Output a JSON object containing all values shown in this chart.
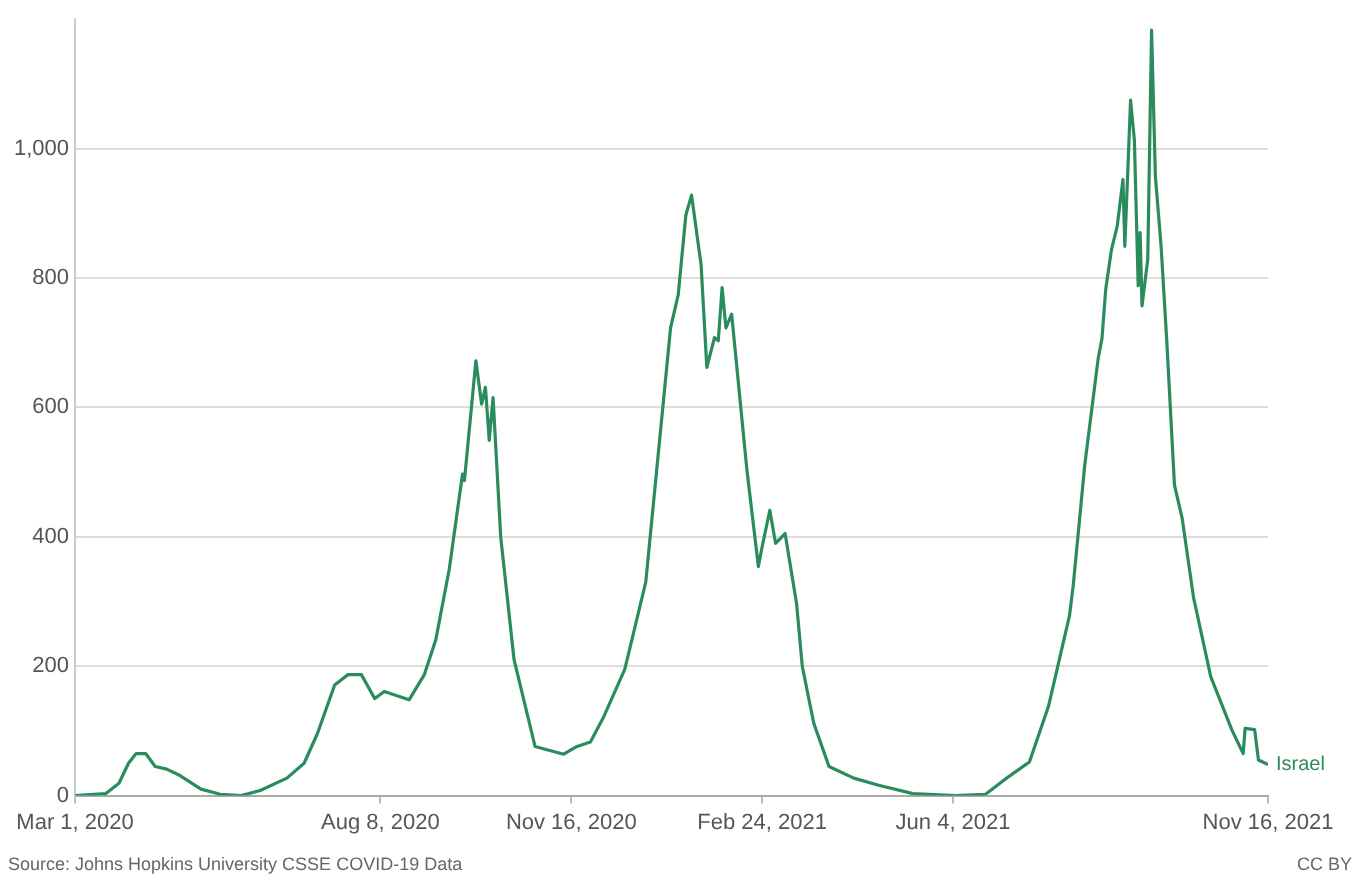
{
  "chart_data": {
    "type": "line",
    "annotations": [
      "Source: Johns Hopkins University CSSE COVID-19 Data",
      "CC BY"
    ],
    "xlim": [
      "2020-03-01",
      "2021-11-16"
    ],
    "xticks": [
      {
        "value": "2020-03-01",
        "label": "Mar 1, 2020"
      },
      {
        "value": "2020-08-08",
        "label": "Aug 8, 2020"
      },
      {
        "value": "2020-11-16",
        "label": "Nov 16, 2020"
      },
      {
        "value": "2021-02-24",
        "label": "Feb 24, 2021"
      },
      {
        "value": "2021-06-04",
        "label": "Jun 4, 2021"
      },
      {
        "value": "2021-11-16",
        "label": "Nov 16, 2021"
      }
    ],
    "ylim": [
      0,
      1200
    ],
    "yticks": [
      0,
      200,
      400,
      600,
      800,
      {
        "value": 1000,
        "label": "1,000"
      }
    ],
    "grid": "y",
    "marker": "none",
    "line_style": "solid",
    "series": [
      {
        "name": "Israel",
        "color": "#2a8c5c",
        "x": [
          "2020-03-01",
          "2020-03-17",
          "2020-03-24",
          "2020-03-29",
          "2020-04-02",
          "2020-04-07",
          "2020-04-12",
          "2020-04-18",
          "2020-04-25",
          "2020-05-06",
          "2020-05-16",
          "2020-05-27",
          "2020-06-06",
          "2020-06-20",
          "2020-06-29",
          "2020-07-06",
          "2020-07-15",
          "2020-07-22",
          "2020-07-29",
          "2020-08-05",
          "2020-08-10",
          "2020-08-23",
          "2020-08-31",
          "2020-09-06",
          "2020-09-13",
          "2020-09-20",
          "2020-09-21",
          "2020-09-27",
          "2020-09-30",
          "2020-10-02",
          "2020-10-04",
          "2020-10-06",
          "2020-10-10",
          "2020-10-17",
          "2020-10-28",
          "2020-11-12",
          "2020-11-19",
          "2020-11-26",
          "2020-12-03",
          "2020-12-14",
          "2020-12-25",
          "2021-01-07",
          "2021-01-11",
          "2021-01-15",
          "2021-01-18",
          "2021-01-23",
          "2021-01-26",
          "2021-01-30",
          "2021-02-01",
          "2021-02-03",
          "2021-02-05",
          "2021-02-08",
          "2021-02-16",
          "2021-02-22",
          "2021-02-24",
          "2021-02-28",
          "2021-03-03",
          "2021-03-08",
          "2021-03-14",
          "2021-03-17",
          "2021-03-23",
          "2021-03-31",
          "2021-04-13",
          "2021-04-26",
          "2021-05-14",
          "2021-06-05",
          "2021-06-21",
          "2021-07-03",
          "2021-07-14",
          "2021-07-24",
          "2021-08-04",
          "2021-08-06",
          "2021-08-12",
          "2021-08-19",
          "2021-08-21",
          "2021-08-23",
          "2021-08-26",
          "2021-08-29",
          "2021-09-01",
          "2021-09-02",
          "2021-09-05",
          "2021-09-07",
          "2021-09-09",
          "2021-09-10",
          "2021-09-11",
          "2021-09-14",
          "2021-09-16",
          "2021-09-18",
          "2021-09-21",
          "2021-09-24",
          "2021-09-28",
          "2021-10-02",
          "2021-10-08",
          "2021-10-17",
          "2021-10-28",
          "2021-11-03",
          "2021-11-04",
          "2021-11-09",
          "2021-11-11",
          "2021-11-16"
        ],
        "values": [
          0,
          3,
          19,
          50,
          65,
          65,
          45,
          41,
          31,
          10,
          2,
          0,
          8,
          27,
          50,
          96,
          171,
          187,
          187,
          150,
          161,
          148,
          187,
          241,
          349,
          497,
          487,
          672,
          605,
          631,
          549,
          615,
          400,
          210,
          76,
          64,
          76,
          83,
          122,
          195,
          330,
          723,
          774,
          897,
          928,
          820,
          662,
          708,
          703,
          785,
          723,
          744,
          503,
          354,
          385,
          441,
          390,
          405,
          297,
          200,
          112,
          45,
          27,
          16,
          3,
          0,
          2,
          29,
          52,
          138,
          278,
          326,
          511,
          675,
          706,
          783,
          844,
          880,
          952,
          849,
          1075,
          1013,
          788,
          870,
          757,
          829,
          1183,
          957,
          849,
          701,
          480,
          429,
          306,
          184,
          102,
          65,
          104,
          102,
          55,
          48
        ]
      }
    ]
  }
}
